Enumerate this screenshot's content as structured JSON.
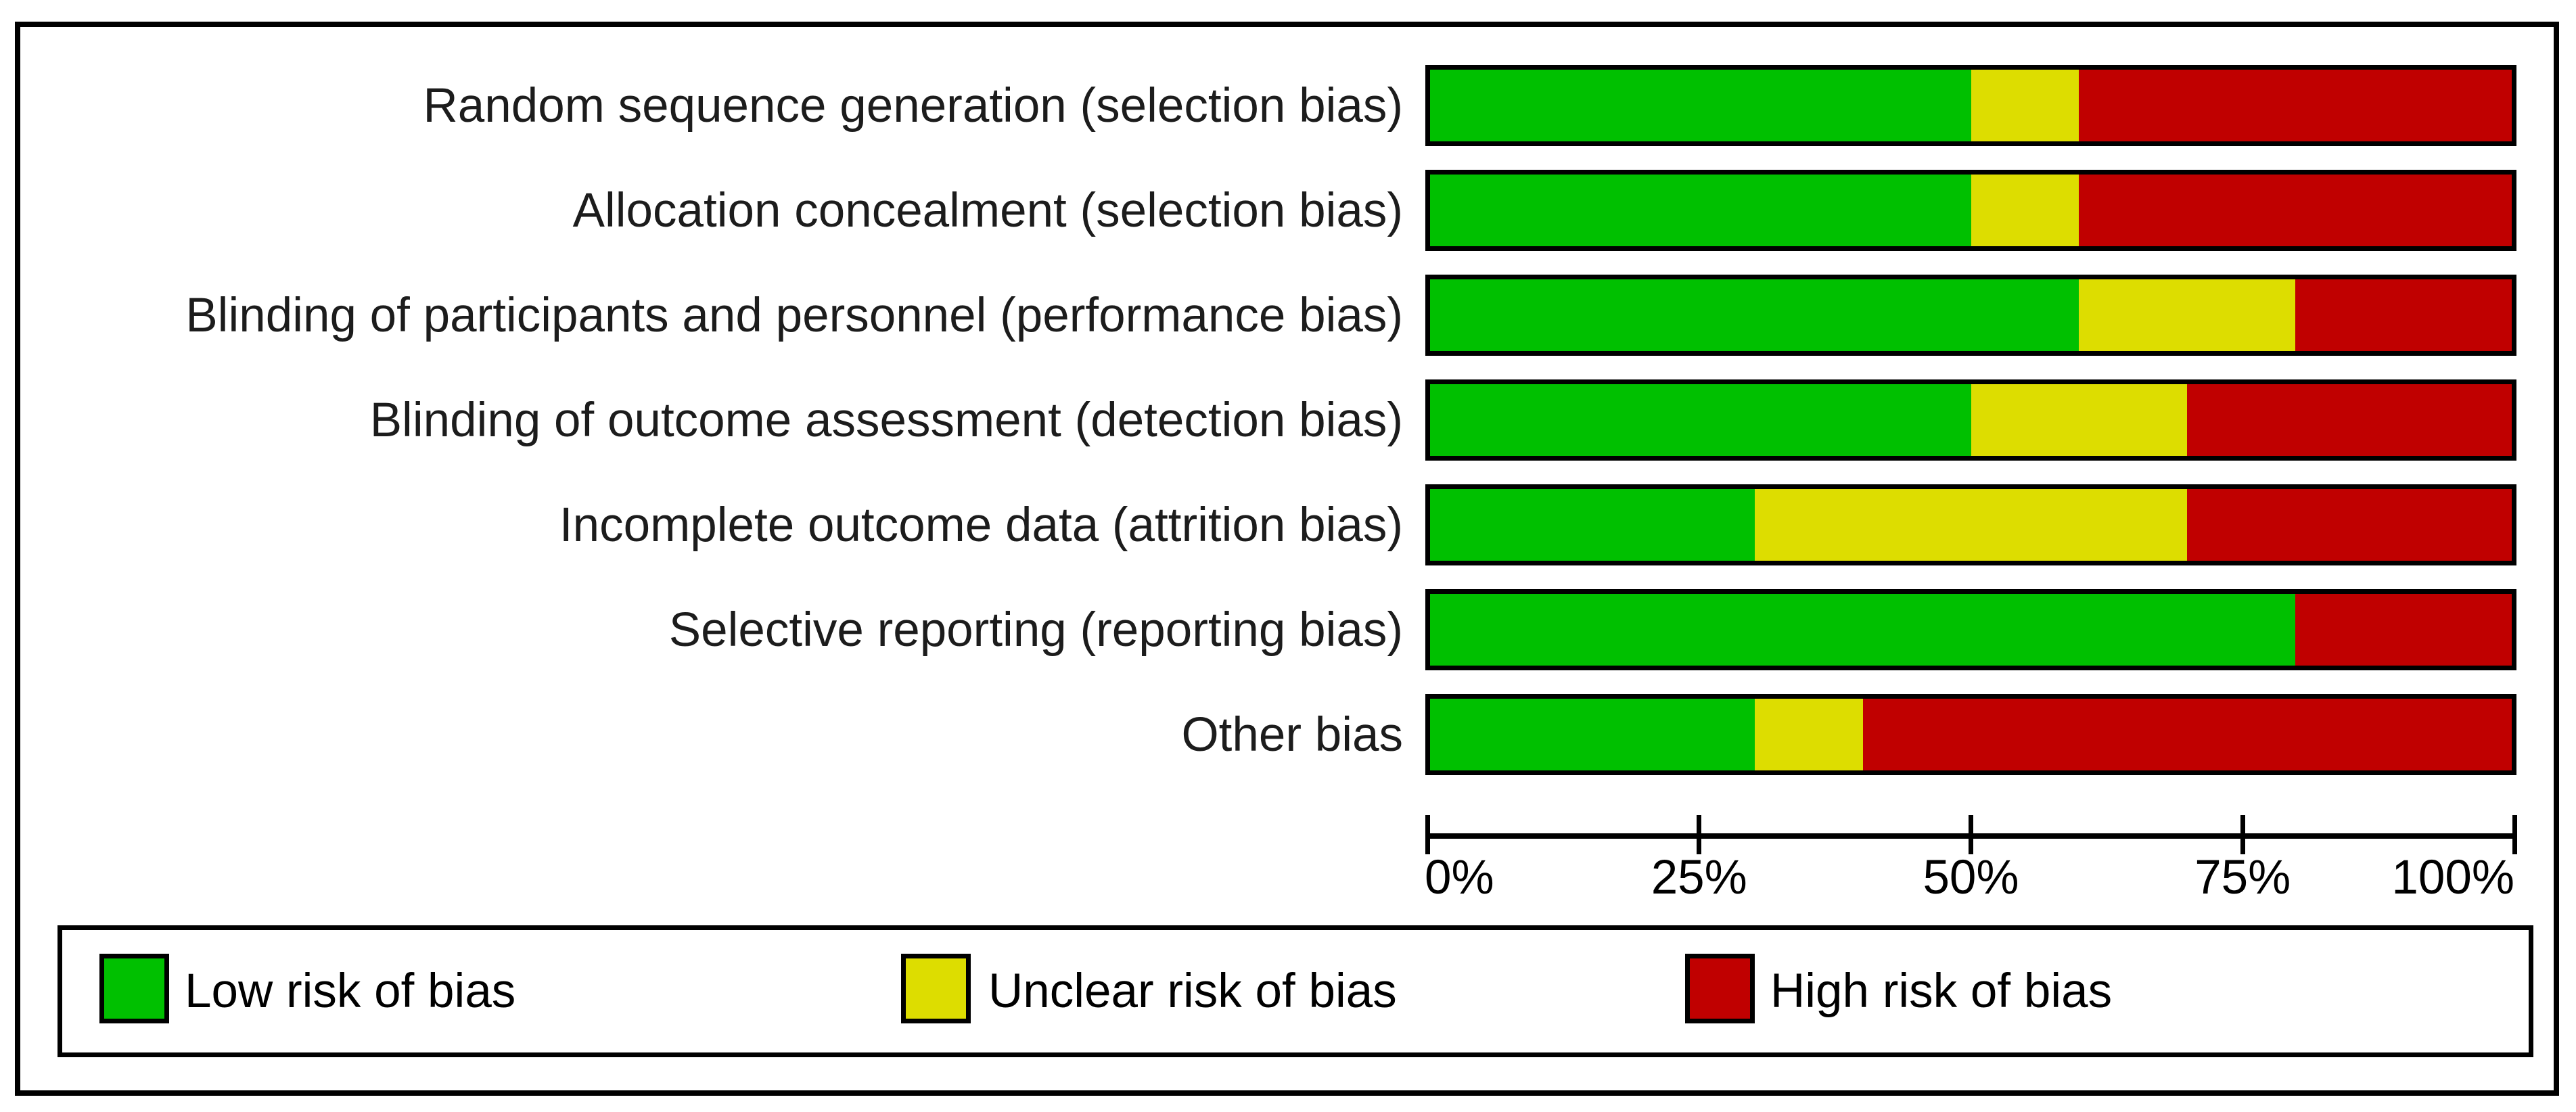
{
  "chart_data": {
    "type": "bar",
    "orientation": "horizontal_stacked",
    "unit": "percent",
    "title": "",
    "xlabel": "",
    "ylabel": "",
    "xlim": [
      0,
      100
    ],
    "x_ticks": [
      "0%",
      "25%",
      "50%",
      "75%",
      "100%"
    ],
    "grid": false,
    "legend_position": "bottom",
    "categories": [
      "Random sequence generation (selection bias)",
      "Allocation concealment (selection bias)",
      "Blinding of participants and personnel (performance bias)",
      "Blinding of outcome assessment (detection bias)",
      "Incomplete outcome data (attrition bias)",
      "Selective reporting (reporting bias)",
      "Other bias"
    ],
    "series": [
      {
        "name": "Low risk of bias",
        "color": "#00C000",
        "values": [
          50,
          50,
          60,
          50,
          30,
          80,
          30
        ]
      },
      {
        "name": "Unclear risk of bias",
        "color": "#DDDD00",
        "values": [
          10,
          10,
          20,
          20,
          40,
          0,
          10
        ]
      },
      {
        "name": "High risk of bias",
        "color": "#C00000",
        "values": [
          40,
          40,
          20,
          30,
          30,
          20,
          60
        ]
      }
    ]
  },
  "colors": {
    "border": "#000000",
    "label_text": "#1c1c1c",
    "axis_text": "#000000",
    "background": "#ffffff"
  }
}
